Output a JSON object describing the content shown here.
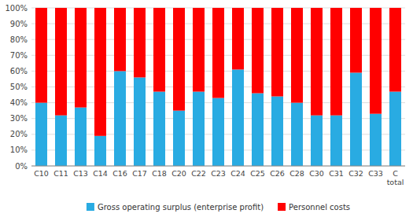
{
  "chart_data": {
    "type": "bar",
    "stacked": true,
    "grid": true,
    "legend": "bottom",
    "categories": [
      "C10",
      "C11",
      "C13",
      "C14",
      "C16",
      "C17",
      "C18",
      "C20",
      "C22",
      "C23",
      "C24",
      "C25",
      "C26",
      "C28",
      "C30",
      "C31",
      "C32",
      "C33",
      "C\ntotal"
    ],
    "series": [
      {
        "name": "Gross operating surplus (enterprise profit)",
        "color": "#29ABE2",
        "values": [
          40,
          32,
          37,
          19,
          60,
          56,
          47,
          35,
          47,
          43,
          61,
          46,
          44,
          40,
          32,
          32,
          59,
          33,
          47
        ]
      },
      {
        "name": "Personnel costs",
        "color": "#FF0000",
        "values": [
          60,
          68,
          63,
          81,
          40,
          44,
          53,
          65,
          53,
          57,
          39,
          54,
          56,
          60,
          68,
          68,
          41,
          67,
          53
        ]
      }
    ],
    "ylim": [
      0,
      100
    ],
    "yticks": [
      {
        "value": 0,
        "label": "0%"
      },
      {
        "value": 10,
        "label": "10%"
      },
      {
        "value": 20,
        "label": "20%"
      },
      {
        "value": 30,
        "label": "30%"
      },
      {
        "value": 40,
        "label": "40%"
      },
      {
        "value": 50,
        "label": "50%"
      },
      {
        "value": 60,
        "label": "60%"
      },
      {
        "value": 70,
        "label": "70%"
      },
      {
        "value": 80,
        "label": "80%"
      },
      {
        "value": 90,
        "label": "90%"
      },
      {
        "value": 100,
        "label": "100%"
      }
    ]
  }
}
